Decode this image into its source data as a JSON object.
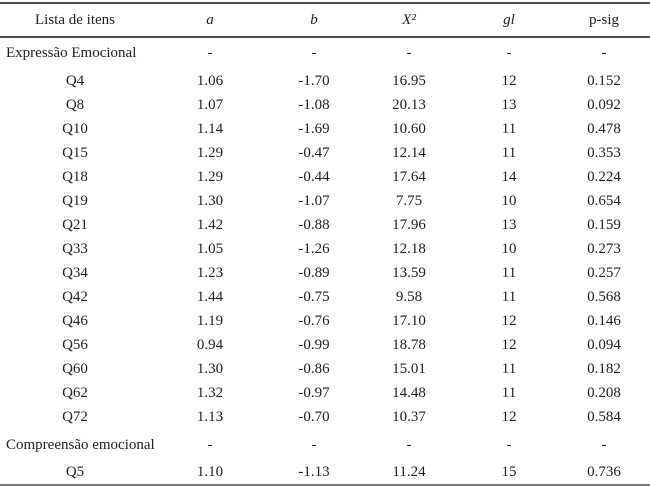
{
  "table": {
    "columns": [
      {
        "key": "item",
        "label": "Lista de itens",
        "italic": false
      },
      {
        "key": "a",
        "label": "a",
        "italic": true
      },
      {
        "key": "b",
        "label": "b",
        "italic": true
      },
      {
        "key": "x2",
        "label": "X²",
        "italic": true
      },
      {
        "key": "gl",
        "label": "gl",
        "italic": true
      },
      {
        "key": "psig",
        "label": "p-sig",
        "italic": false
      }
    ],
    "rows": [
      {
        "type": "section",
        "item": "Expressão Emocional",
        "a": "-",
        "b": "-",
        "x2": "-",
        "gl": "-",
        "psig": "-"
      },
      {
        "type": "item",
        "item": "Q4",
        "a": "1.06",
        "b": "-1.70",
        "x2": "16.95",
        "gl": "12",
        "psig": "0.152"
      },
      {
        "type": "item",
        "item": "Q8",
        "a": "1.07",
        "b": "-1.08",
        "x2": "20.13",
        "gl": "13",
        "psig": "0.092"
      },
      {
        "type": "item",
        "item": "Q10",
        "a": "1.14",
        "b": "-1.69",
        "x2": "10.60",
        "gl": "11",
        "psig": "0.478"
      },
      {
        "type": "item",
        "item": "Q15",
        "a": "1.29",
        "b": "-0.47",
        "x2": "12.14",
        "gl": "11",
        "psig": "0.353"
      },
      {
        "type": "item",
        "item": "Q18",
        "a": "1.29",
        "b": "-0.44",
        "x2": "17.64",
        "gl": "14",
        "psig": "0.224"
      },
      {
        "type": "item",
        "item": "Q19",
        "a": "1.30",
        "b": "-1.07",
        "x2": "7.75",
        "gl": "10",
        "psig": "0.654"
      },
      {
        "type": "item",
        "item": "Q21",
        "a": "1.42",
        "b": "-0.88",
        "x2": "17.96",
        "gl": "13",
        "psig": "0.159"
      },
      {
        "type": "item",
        "item": "Q33",
        "a": "1.05",
        "b": "-1.26",
        "x2": "12.18",
        "gl": "10",
        "psig": "0.273"
      },
      {
        "type": "item",
        "item": "Q34",
        "a": "1.23",
        "b": "-0.89",
        "x2": "13.59",
        "gl": "11",
        "psig": "0.257"
      },
      {
        "type": "item",
        "item": "Q42",
        "a": "1.44",
        "b": "-0.75",
        "x2": "9.58",
        "gl": "11",
        "psig": "0.568"
      },
      {
        "type": "item",
        "item": "Q46",
        "a": "1.19",
        "b": "-0.76",
        "x2": "17.10",
        "gl": "12",
        "psig": "0.146"
      },
      {
        "type": "item",
        "item": "Q56",
        "a": "0.94",
        "b": "-0.99",
        "x2": "18.78",
        "gl": "12",
        "psig": "0.094"
      },
      {
        "type": "item",
        "item": "Q60",
        "a": "1.30",
        "b": "-0.86",
        "x2": "15.01",
        "gl": "11",
        "psig": "0.182"
      },
      {
        "type": "item",
        "item": "Q62",
        "a": "1.32",
        "b": "-0.97",
        "x2": "14.48",
        "gl": "11",
        "psig": "0.208"
      },
      {
        "type": "item",
        "item": "Q72",
        "a": "1.13",
        "b": "-0.70",
        "x2": "10.37",
        "gl": "12",
        "psig": "0.584"
      },
      {
        "type": "section",
        "item": "Compreensão emocional",
        "a": "-",
        "b": "-",
        "x2": "-",
        "gl": "-",
        "psig": "-"
      },
      {
        "type": "item",
        "item": "Q5",
        "a": "1.10",
        "b": "-1.13",
        "x2": "11.24",
        "gl": "15",
        "psig": "0.736"
      }
    ]
  }
}
